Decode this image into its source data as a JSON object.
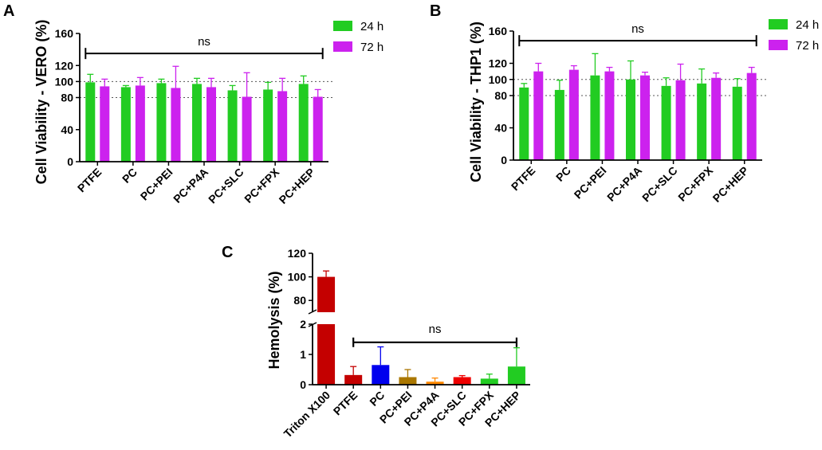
{
  "chart_data": [
    {
      "panel": "A",
      "type": "bar",
      "ylabel": "Cell Viability - VERO (%)",
      "categories": [
        "PTFE",
        "PC",
        "PC+PEI",
        "PC+P4A",
        "PC+SLC",
        "PC+FPX",
        "PC+HEP"
      ],
      "ylim": [
        0,
        160
      ],
      "yticks": [
        0,
        40,
        80,
        100,
        120,
        160
      ],
      "reference_lines": [
        80,
        100
      ],
      "series": [
        {
          "name": "24 h",
          "color": "#22cc22",
          "values": [
            99,
            93,
            98,
            97,
            89,
            90,
            97
          ],
          "errors": [
            10,
            2,
            5,
            7,
            6,
            9,
            10
          ]
        },
        {
          "name": "72 h",
          "color": "#cc22ee",
          "values": [
            94,
            95,
            92,
            93,
            81,
            88,
            81
          ],
          "errors": [
            9,
            10,
            27,
            11,
            30,
            16,
            9
          ]
        }
      ],
      "significance": {
        "label": "ns",
        "from": "PTFE",
        "to": "PC+HEP",
        "y": 135
      }
    },
    {
      "panel": "B",
      "type": "bar",
      "ylabel": "Cell Viability - THP1 (%)",
      "categories": [
        "PTFE",
        "PC",
        "PC+PEI",
        "PC+P4A",
        "PC+SLC",
        "PC+FPX",
        "PC+HEP"
      ],
      "ylim": [
        0,
        160
      ],
      "yticks": [
        0,
        40,
        80,
        100,
        120,
        160
      ],
      "reference_lines": [
        80,
        100
      ],
      "series": [
        {
          "name": "24 h",
          "color": "#22cc22",
          "values": [
            90,
            87,
            105,
            100,
            92,
            95,
            91
          ],
          "errors": [
            5,
            12,
            27,
            23,
            10,
            18,
            10
          ]
        },
        {
          "name": "72 h",
          "color": "#cc22ee",
          "values": [
            110,
            112,
            110,
            105,
            99,
            102,
            108
          ],
          "errors": [
            10,
            5,
            5,
            4,
            20,
            6,
            7
          ]
        }
      ],
      "significance": {
        "label": "ns",
        "from": "PTFE",
        "to": "PC+HEP",
        "y": 148
      }
    },
    {
      "panel": "C",
      "type": "bar",
      "ylabel": "Hemolysis (%)",
      "broken_axis": true,
      "upper_ylim": [
        70,
        120
      ],
      "upper_yticks": [
        80,
        100,
        120
      ],
      "lower_ylim": [
        0,
        2
      ],
      "lower_yticks": [
        0,
        1,
        2
      ],
      "categories": [
        "Triton X100",
        "PTFE",
        "PC",
        "PC+PEI",
        "PC+P4A",
        "PC+SLC",
        "PC+FPX",
        "PC+HEP"
      ],
      "values": [
        100,
        0.32,
        0.65,
        0.25,
        0.1,
        0.25,
        0.2,
        0.6
      ],
      "errors": [
        5,
        0.28,
        0.6,
        0.25,
        0.12,
        0.05,
        0.15,
        0.62
      ],
      "colors": [
        "#c40000",
        "#c40000",
        "#0000ee",
        "#aa7700",
        "#ff8800",
        "#ee0000",
        "#22cc22",
        "#22cc22"
      ],
      "significance": {
        "label": "ns",
        "from": "PTFE",
        "to": "PC+HEP",
        "y": 1.4
      }
    }
  ]
}
